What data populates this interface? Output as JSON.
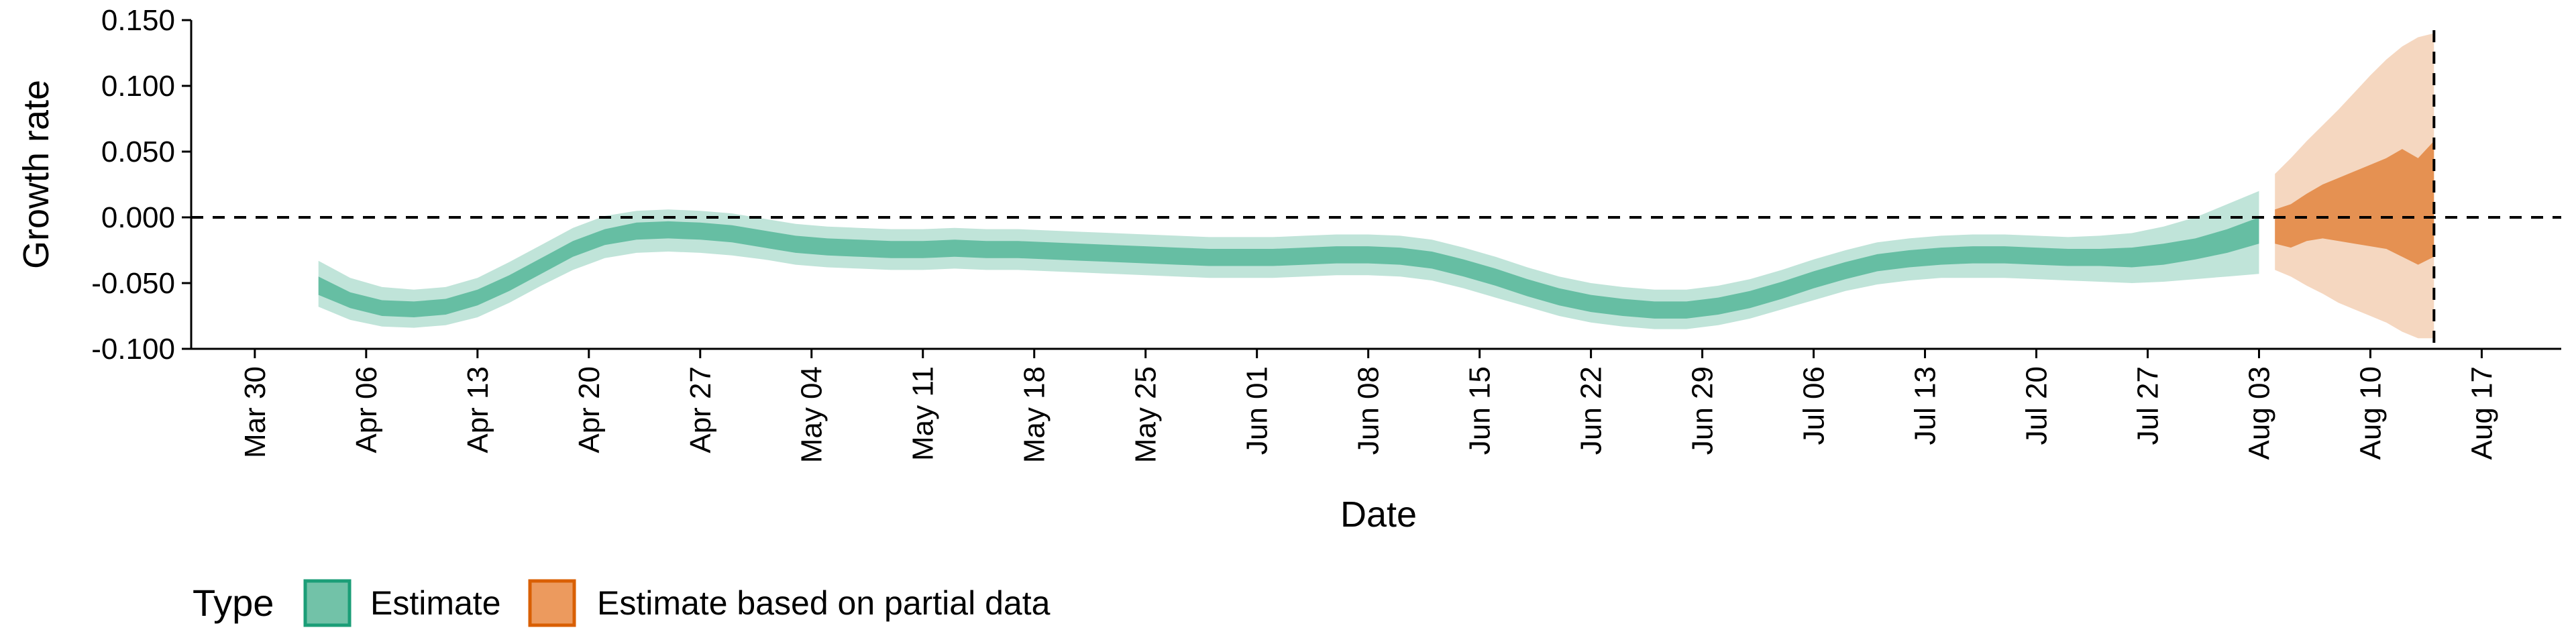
{
  "chart_data": {
    "type": "area",
    "title": "",
    "xlabel": "Date",
    "ylabel": "Growth rate",
    "ylim": [
      -0.1,
      0.15
    ],
    "xlim": [
      "2020-03-26",
      "2020-08-22"
    ],
    "y_ticks": [
      -0.1,
      -0.05,
      0.0,
      0.05,
      0.1,
      0.15
    ],
    "y_tick_labels": [
      "-0.100",
      "-0.050",
      "0.000",
      "0.050",
      "0.100",
      "0.150"
    ],
    "x_ticks": [
      "2020-03-30",
      "2020-04-06",
      "2020-04-13",
      "2020-04-20",
      "2020-04-27",
      "2020-05-04",
      "2020-05-11",
      "2020-05-18",
      "2020-05-25",
      "2020-06-01",
      "2020-06-08",
      "2020-06-15",
      "2020-06-22",
      "2020-06-29",
      "2020-07-06",
      "2020-07-13",
      "2020-07-20",
      "2020-07-27",
      "2020-08-03",
      "2020-08-10",
      "2020-08-17"
    ],
    "x_tick_labels": [
      "Mar 30",
      "Apr 06",
      "Apr 13",
      "Apr 20",
      "Apr 27",
      "May 04",
      "May 11",
      "May 18",
      "May 25",
      "Jun 01",
      "Jun 08",
      "Jun 15",
      "Jun 22",
      "Jun 29",
      "Jul 06",
      "Jul 13",
      "Jul 20",
      "Jul 27",
      "Aug 03",
      "Aug 10",
      "Aug 17"
    ],
    "reference_lines": {
      "horizontal_y": 0.0,
      "vertical_x": "2020-08-14",
      "style": "dashed"
    },
    "grid": false,
    "legend": {
      "title": "Type",
      "position": "bottom-left",
      "entries": [
        "Estimate",
        "Estimate based on partial data"
      ]
    },
    "series": [
      {
        "name": "Estimate",
        "color": "#1b9e77",
        "dates": [
          "2020-04-03",
          "2020-04-05",
          "2020-04-07",
          "2020-04-09",
          "2020-04-11",
          "2020-04-13",
          "2020-04-15",
          "2020-04-17",
          "2020-04-19",
          "2020-04-21",
          "2020-04-23",
          "2020-04-25",
          "2020-04-27",
          "2020-04-29",
          "2020-05-01",
          "2020-05-03",
          "2020-05-05",
          "2020-05-07",
          "2020-05-09",
          "2020-05-11",
          "2020-05-13",
          "2020-05-15",
          "2020-05-17",
          "2020-05-19",
          "2020-05-21",
          "2020-05-23",
          "2020-05-25",
          "2020-05-27",
          "2020-05-29",
          "2020-05-31",
          "2020-06-02",
          "2020-06-04",
          "2020-06-06",
          "2020-06-08",
          "2020-06-10",
          "2020-06-12",
          "2020-06-14",
          "2020-06-16",
          "2020-06-18",
          "2020-06-20",
          "2020-06-22",
          "2020-06-24",
          "2020-06-26",
          "2020-06-28",
          "2020-06-30",
          "2020-07-02",
          "2020-07-04",
          "2020-07-06",
          "2020-07-08",
          "2020-07-10",
          "2020-07-12",
          "2020-07-14",
          "2020-07-16",
          "2020-07-18",
          "2020-07-20",
          "2020-07-22",
          "2020-07-24",
          "2020-07-26",
          "2020-07-28",
          "2020-07-30",
          "2020-08-01",
          "2020-08-03"
        ],
        "median": [
          -0.052,
          -0.063,
          -0.069,
          -0.07,
          -0.068,
          -0.061,
          -0.05,
          -0.037,
          -0.024,
          -0.015,
          -0.01,
          -0.009,
          -0.01,
          -0.012,
          -0.016,
          -0.02,
          -0.022,
          -0.023,
          -0.024,
          -0.024,
          -0.023,
          -0.024,
          -0.024,
          -0.025,
          -0.026,
          -0.027,
          -0.028,
          -0.029,
          -0.03,
          -0.03,
          -0.03,
          -0.029,
          -0.028,
          -0.028,
          -0.029,
          -0.032,
          -0.038,
          -0.045,
          -0.053,
          -0.06,
          -0.065,
          -0.068,
          -0.07,
          -0.07,
          -0.067,
          -0.062,
          -0.055,
          -0.047,
          -0.04,
          -0.034,
          -0.031,
          -0.029,
          -0.028,
          -0.028,
          -0.029,
          -0.03,
          -0.03,
          -0.03,
          -0.028,
          -0.024,
          -0.018,
          -0.01
        ],
        "lower_50": [
          -0.059,
          -0.069,
          -0.075,
          -0.076,
          -0.074,
          -0.067,
          -0.056,
          -0.043,
          -0.03,
          -0.021,
          -0.017,
          -0.016,
          -0.017,
          -0.019,
          -0.023,
          -0.027,
          -0.029,
          -0.03,
          -0.031,
          -0.031,
          -0.03,
          -0.031,
          -0.031,
          -0.032,
          -0.033,
          -0.034,
          -0.035,
          -0.036,
          -0.037,
          -0.037,
          -0.037,
          -0.036,
          -0.035,
          -0.035,
          -0.036,
          -0.039,
          -0.045,
          -0.052,
          -0.06,
          -0.067,
          -0.072,
          -0.075,
          -0.077,
          -0.077,
          -0.074,
          -0.069,
          -0.062,
          -0.054,
          -0.047,
          -0.041,
          -0.038,
          -0.036,
          -0.035,
          -0.035,
          -0.036,
          -0.037,
          -0.037,
          -0.038,
          -0.036,
          -0.032,
          -0.027,
          -0.02
        ],
        "upper_50": [
          -0.045,
          -0.057,
          -0.063,
          -0.064,
          -0.062,
          -0.055,
          -0.044,
          -0.031,
          -0.018,
          -0.009,
          -0.004,
          -0.003,
          -0.004,
          -0.006,
          -0.01,
          -0.014,
          -0.016,
          -0.017,
          -0.018,
          -0.018,
          -0.017,
          -0.018,
          -0.018,
          -0.019,
          -0.02,
          -0.021,
          -0.022,
          -0.023,
          -0.024,
          -0.024,
          -0.024,
          -0.023,
          -0.022,
          -0.022,
          -0.023,
          -0.026,
          -0.032,
          -0.039,
          -0.047,
          -0.054,
          -0.059,
          -0.062,
          -0.064,
          -0.064,
          -0.061,
          -0.056,
          -0.049,
          -0.041,
          -0.034,
          -0.028,
          -0.025,
          -0.023,
          -0.022,
          -0.022,
          -0.023,
          -0.024,
          -0.024,
          -0.023,
          -0.02,
          -0.016,
          -0.009,
          0.0
        ],
        "lower_90": [
          -0.068,
          -0.078,
          -0.083,
          -0.084,
          -0.082,
          -0.076,
          -0.065,
          -0.052,
          -0.04,
          -0.031,
          -0.027,
          -0.026,
          -0.027,
          -0.029,
          -0.032,
          -0.036,
          -0.038,
          -0.039,
          -0.04,
          -0.04,
          -0.039,
          -0.04,
          -0.04,
          -0.041,
          -0.042,
          -0.043,
          -0.044,
          -0.045,
          -0.046,
          -0.046,
          -0.046,
          -0.045,
          -0.044,
          -0.044,
          -0.045,
          -0.048,
          -0.054,
          -0.061,
          -0.068,
          -0.075,
          -0.08,
          -0.083,
          -0.085,
          -0.085,
          -0.082,
          -0.077,
          -0.07,
          -0.063,
          -0.056,
          -0.051,
          -0.048,
          -0.046,
          -0.046,
          -0.046,
          -0.047,
          -0.048,
          -0.049,
          -0.05,
          -0.049,
          -0.047,
          -0.045,
          -0.043
        ],
        "upper_90": [
          -0.033,
          -0.046,
          -0.053,
          -0.055,
          -0.053,
          -0.046,
          -0.034,
          -0.021,
          -0.008,
          0.001,
          0.005,
          0.006,
          0.005,
          0.003,
          -0.001,
          -0.005,
          -0.007,
          -0.008,
          -0.009,
          -0.009,
          -0.008,
          -0.009,
          -0.009,
          -0.01,
          -0.011,
          -0.012,
          -0.013,
          -0.014,
          -0.015,
          -0.015,
          -0.015,
          -0.014,
          -0.013,
          -0.013,
          -0.014,
          -0.017,
          -0.023,
          -0.03,
          -0.038,
          -0.045,
          -0.05,
          -0.053,
          -0.055,
          -0.055,
          -0.052,
          -0.047,
          -0.04,
          -0.032,
          -0.025,
          -0.019,
          -0.016,
          -0.014,
          -0.013,
          -0.013,
          -0.014,
          -0.015,
          -0.014,
          -0.012,
          -0.007,
          0.0,
          0.01,
          0.02
        ]
      },
      {
        "name": "Estimate based on partial data",
        "color": "#d95f02",
        "dates": [
          "2020-08-04",
          "2020-08-05",
          "2020-08-06",
          "2020-08-07",
          "2020-08-08",
          "2020-08-09",
          "2020-08-10",
          "2020-08-11",
          "2020-08-12",
          "2020-08-13",
          "2020-08-14"
        ],
        "lower_50": [
          -0.02,
          -0.023,
          -0.018,
          -0.016,
          -0.018,
          -0.02,
          -0.022,
          -0.024,
          -0.03,
          -0.036,
          -0.03
        ],
        "upper_50": [
          0.006,
          0.01,
          0.018,
          0.025,
          0.03,
          0.035,
          0.04,
          0.045,
          0.052,
          0.045,
          0.058
        ],
        "lower_90": [
          -0.04,
          -0.045,
          -0.052,
          -0.058,
          -0.065,
          -0.07,
          -0.075,
          -0.08,
          -0.087,
          -0.092,
          -0.092
        ],
        "upper_90": [
          0.033,
          0.045,
          0.058,
          0.07,
          0.082,
          0.095,
          0.108,
          0.12,
          0.13,
          0.137,
          0.14
        ]
      }
    ]
  }
}
